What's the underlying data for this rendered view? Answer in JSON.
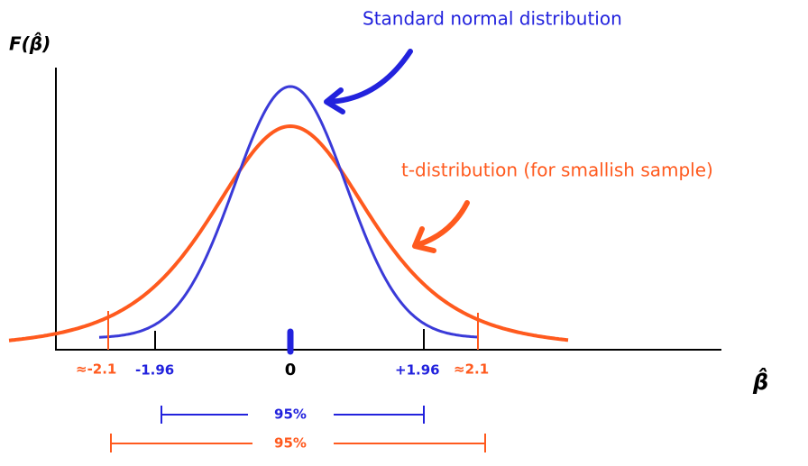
{
  "title_normal": "Standard normal distribution",
  "title_t": "t-distribution (for smallish sample)",
  "y_axis_label": "F(β̂)",
  "x_axis_label": "β̂",
  "ticks": {
    "t_left": "≈-2.1",
    "n_left": "-1.96",
    "center": "0",
    "n_right": "+1.96",
    "t_right": "≈2.1"
  },
  "intervals": {
    "normal": "95%",
    "t": "95%"
  }
}
